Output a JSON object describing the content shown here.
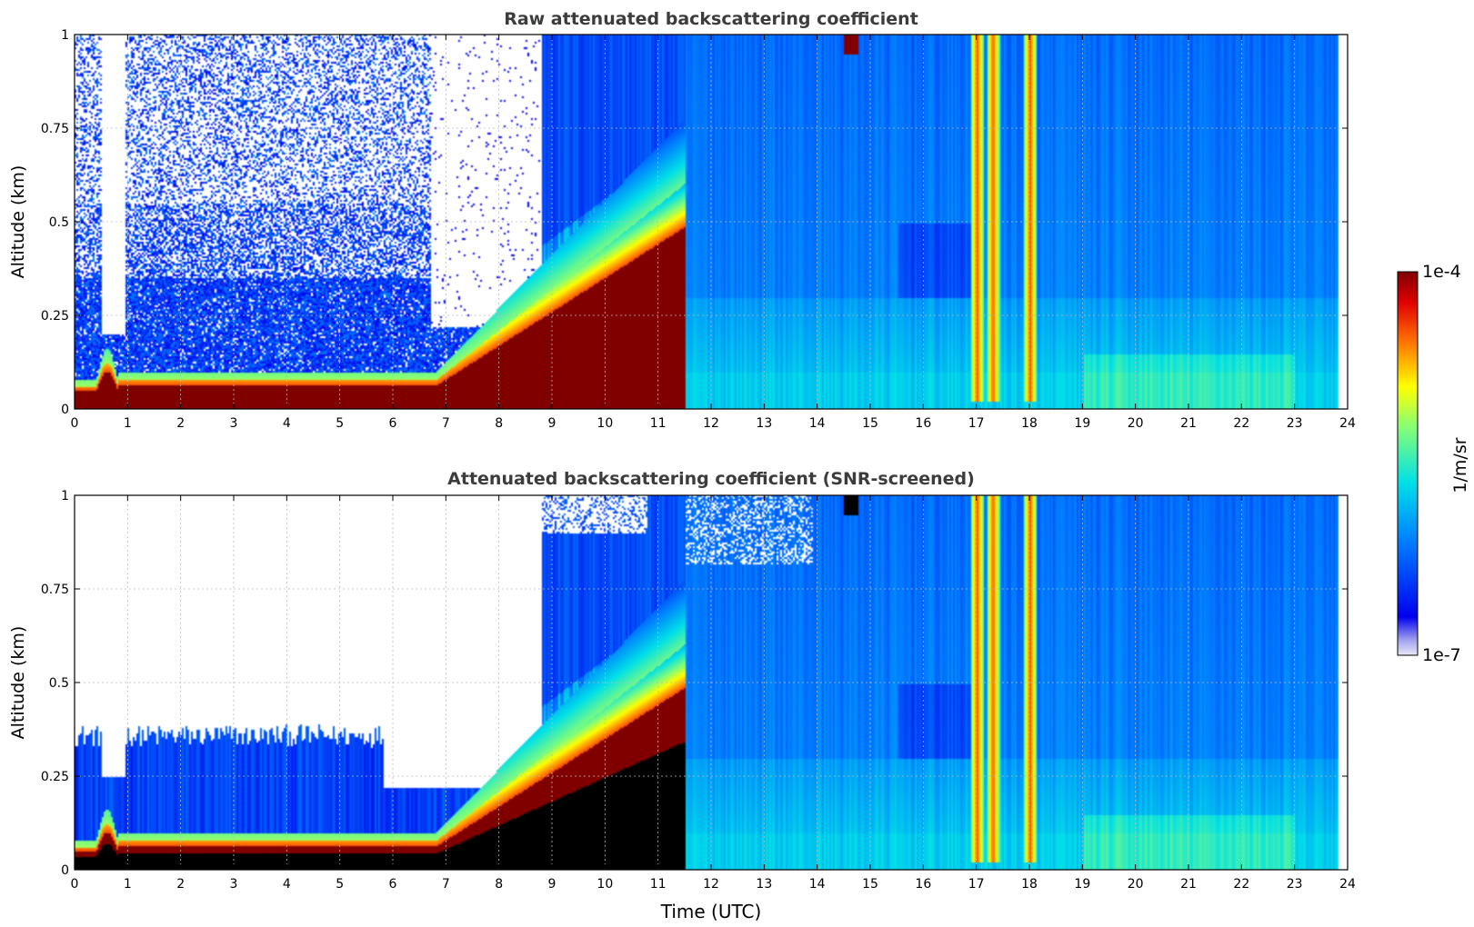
{
  "chart_data": [
    {
      "type": "heatmap",
      "title": "Raw attenuated backscattering coefficient",
      "ylabel": "Altitude (km)",
      "xlabel": "",
      "xlim": [
        0,
        24
      ],
      "ylim": [
        0,
        1
      ],
      "x_ticks": [
        "0",
        "1",
        "2",
        "3",
        "4",
        "5",
        "6",
        "7",
        "8",
        "9",
        "10",
        "11",
        "12",
        "13",
        "14",
        "15",
        "16",
        "17",
        "18",
        "19",
        "20",
        "21",
        "22",
        "23",
        "24"
      ],
      "y_ticks": [
        "0",
        "0.25",
        "0.5",
        "0.75",
        "1"
      ],
      "grid": true,
      "regions": [
        {
          "t": [
            0,
            6.8
          ],
          "description_values": {
            "surface_layer_top_km": 0.07,
            "noise_top_km": 1.0
          }
        },
        {
          "t": [
            6.8,
            11.5
          ],
          "description_values": {
            "rising_layer_top_km": [
              0.1,
              0.55
            ]
          }
        },
        {
          "t": [
            11.5,
            24
          ],
          "description_values": {
            "background_level": "moderate"
          }
        }
      ],
      "bright_columns_hours": [
        17.0,
        17.3,
        18.0
      ]
    },
    {
      "type": "heatmap",
      "title": "Attenuated backscattering coefficient (SNR-screened)",
      "ylabel": "Altitude (km)",
      "xlabel": "Time (UTC)",
      "xlim": [
        0,
        24
      ],
      "ylim": [
        0,
        1
      ],
      "x_ticks": [
        "0",
        "1",
        "2",
        "3",
        "4",
        "5",
        "6",
        "7",
        "8",
        "9",
        "10",
        "11",
        "12",
        "13",
        "14",
        "15",
        "16",
        "17",
        "18",
        "19",
        "20",
        "21",
        "22",
        "23",
        "24"
      ],
      "y_ticks": [
        "0",
        "0.25",
        "0.5",
        "0.75",
        "1"
      ],
      "grid": true,
      "bright_columns_hours": [
        17.0,
        17.3,
        18.0
      ]
    }
  ],
  "colorbar": {
    "label": "1/m/sr",
    "max_label": "1e-4",
    "min_label": "1e-7",
    "colormap": "jet",
    "range": [
      1e-07,
      0.0001
    ],
    "scale": "log"
  }
}
